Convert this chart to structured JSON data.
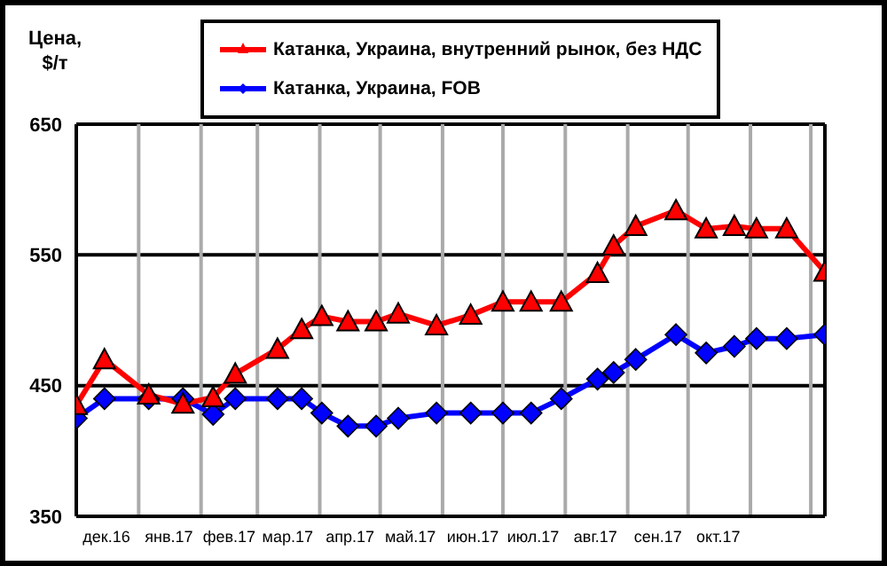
{
  "chart_data": {
    "type": "line",
    "ylabel": "Цена, $/т",
    "x": [
      "2016-12-01",
      "2016-12-15",
      "2017-01-06",
      "2017-01-23",
      "2017-02-07",
      "2017-02-18",
      "2017-03-11",
      "2017-03-23",
      "2017-04-02",
      "2017-04-15",
      "2017-04-29",
      "2017-05-10",
      "2017-05-29",
      "2017-06-15",
      "2017-07-01",
      "2017-07-15",
      "2017-07-30",
      "2017-08-17",
      "2017-08-25",
      "2017-09-05",
      "2017-09-25",
      "2017-10-10",
      "2017-10-24",
      "2017-11-04",
      "2017-11-19",
      "2017-12-08"
    ],
    "series": [
      {
        "name": "Катанка, Украина, внутренний рынок, без НДС",
        "color": "#ff0000",
        "marker": "triangle",
        "values": [
          435,
          470,
          443,
          436,
          441,
          459,
          478,
          493,
          503,
          499,
          499,
          505,
          496,
          504,
          514,
          514,
          514,
          536,
          557,
          572,
          584,
          570,
          572,
          570,
          570,
          537
        ]
      },
      {
        "name": "Катанка, Украина, FOB",
        "color": "#0000ff",
        "marker": "diamond",
        "values": [
          425,
          440,
          440,
          440,
          428,
          440,
          440,
          440,
          429,
          419,
          419,
          425,
          429,
          429,
          429,
          429,
          440,
          455,
          460,
          470,
          489,
          475,
          480,
          486,
          486,
          489
        ]
      }
    ],
    "xlim": [
      "2016-12-01",
      "2017-12-08"
    ],
    "xticks": [
      {
        "value": "2016-12-16",
        "label": "дек.16"
      },
      {
        "value": "2017-01-01",
        "label": null
      },
      {
        "value": "2017-01-16",
        "label": "янв.17"
      },
      {
        "value": "2017-02-01",
        "label": null
      },
      {
        "value": "2017-02-15",
        "label": "фев.17"
      },
      {
        "value": "2017-03-01",
        "label": null
      },
      {
        "value": "2017-03-16",
        "label": "мар.17"
      },
      {
        "value": "2017-04-01",
        "label": null
      },
      {
        "value": "2017-04-16",
        "label": "апр.17"
      },
      {
        "value": "2017-05-01",
        "label": null
      },
      {
        "value": "2017-05-16",
        "label": "май.17"
      },
      {
        "value": "2017-06-01",
        "label": null
      },
      {
        "value": "2017-06-16",
        "label": "июн.17"
      },
      {
        "value": "2017-07-01",
        "label": null
      },
      {
        "value": "2017-07-16",
        "label": "июл.17"
      },
      {
        "value": "2017-08-01",
        "label": null
      },
      {
        "value": "2017-08-16",
        "label": "авг.17"
      },
      {
        "value": "2017-09-01",
        "label": null
      },
      {
        "value": "2017-09-16",
        "label": "сен.17"
      },
      {
        "value": "2017-10-01",
        "label": null
      },
      {
        "value": "2017-10-16",
        "label": "окт.17"
      },
      {
        "value": "2017-11-01",
        "label": null
      },
      {
        "value": "2017-12-01",
        "label": null
      }
    ],
    "ylim": [
      350,
      650
    ],
    "yticks": [
      350,
      450,
      550,
      650
    ],
    "grid": true,
    "legend": "top",
    "line_style": "solid"
  }
}
